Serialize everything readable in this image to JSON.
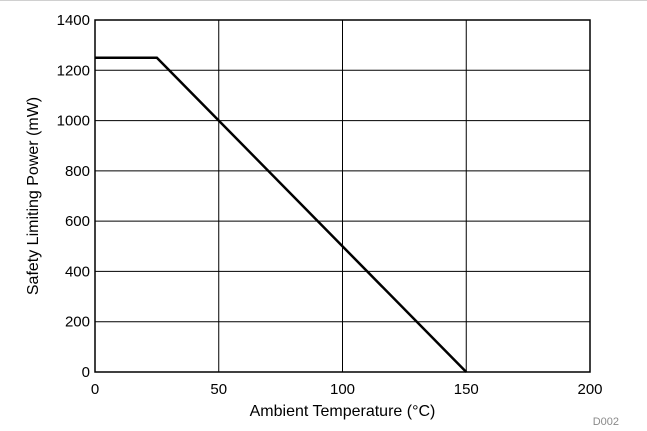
{
  "chart_data": {
    "type": "line",
    "title": "",
    "xlabel": "Ambient Temperature (°C)",
    "ylabel": "Safety Limiting Power (mW)",
    "xlim": [
      0,
      200
    ],
    "ylim": [
      0,
      1400
    ],
    "xticks": [
      0,
      50,
      100,
      150,
      200
    ],
    "yticks": [
      0,
      200,
      400,
      600,
      800,
      1000,
      1200,
      1400
    ],
    "grid": true,
    "legend": "none",
    "series": [
      {
        "x": [
          0,
          25,
          150
        ],
        "y": [
          1250,
          1250,
          0
        ],
        "color": "#000000"
      }
    ],
    "footnote": "D002"
  }
}
